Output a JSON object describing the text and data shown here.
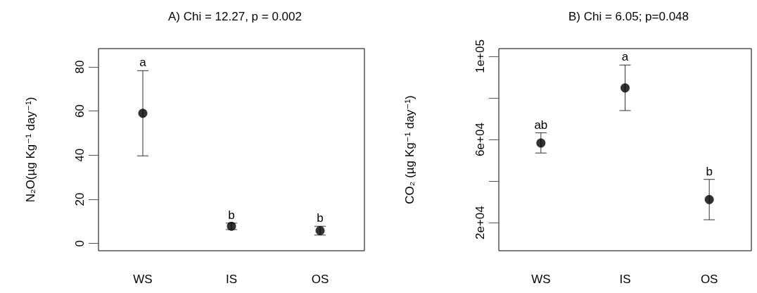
{
  "chart_data": [
    {
      "type": "scatter",
      "title": "A) Chi = 12.27, p = 0.002",
      "ylabel": "N₂O(µg Kg⁻¹ day⁻¹)",
      "categories": [
        "WS",
        "IS",
        "OS"
      ],
      "values": [
        59,
        7.8,
        5.8
      ],
      "errors": [
        [
          39.7,
          78.3
        ],
        [
          6.3,
          9.2
        ],
        [
          3.8,
          7.8
        ]
      ],
      "color": "#000000",
      "marker": "circle",
      "grid": false,
      "ylim": [
        -3.3,
        88.3
      ],
      "yticks": [
        0,
        20,
        40,
        60,
        80
      ],
      "annotations": [
        {
          "text": "a",
          "x": "WS",
          "y": 78.3
        },
        {
          "text": "b",
          "x": "IS",
          "y": 9.2
        },
        {
          "text": "b",
          "x": "OS",
          "y": 7.8
        }
      ]
    },
    {
      "type": "scatter",
      "title": "B) Chi = 6.05; p=0.048",
      "ylabel": "CO₂ (µg Kg⁻¹ day⁻¹)",
      "categories": [
        "WS",
        "IS",
        "OS"
      ],
      "values": [
        58300,
        84800,
        31100
      ],
      "errors": [
        [
          53500,
          63200
        ],
        [
          73900,
          95800
        ],
        [
          21400,
          40800
        ]
      ],
      "color": "#000000",
      "marker": "circle",
      "grid": false,
      "ylim": [
        6500,
        103700
      ],
      "yticks": [
        {
          "value": 20000,
          "label": "2e+04"
        },
        {
          "value": 40000,
          "label": null
        },
        {
          "value": 60000,
          "label": "6e+04"
        },
        {
          "value": 80000,
          "label": null
        },
        {
          "value": 100000,
          "label": "1e+05"
        }
      ],
      "annotations": [
        {
          "text": "ab",
          "x": "WS",
          "y": 63200
        },
        {
          "text": "a",
          "x": "IS",
          "y": 95800
        },
        {
          "text": "b",
          "x": "OS",
          "y": 40800
        }
      ]
    }
  ]
}
